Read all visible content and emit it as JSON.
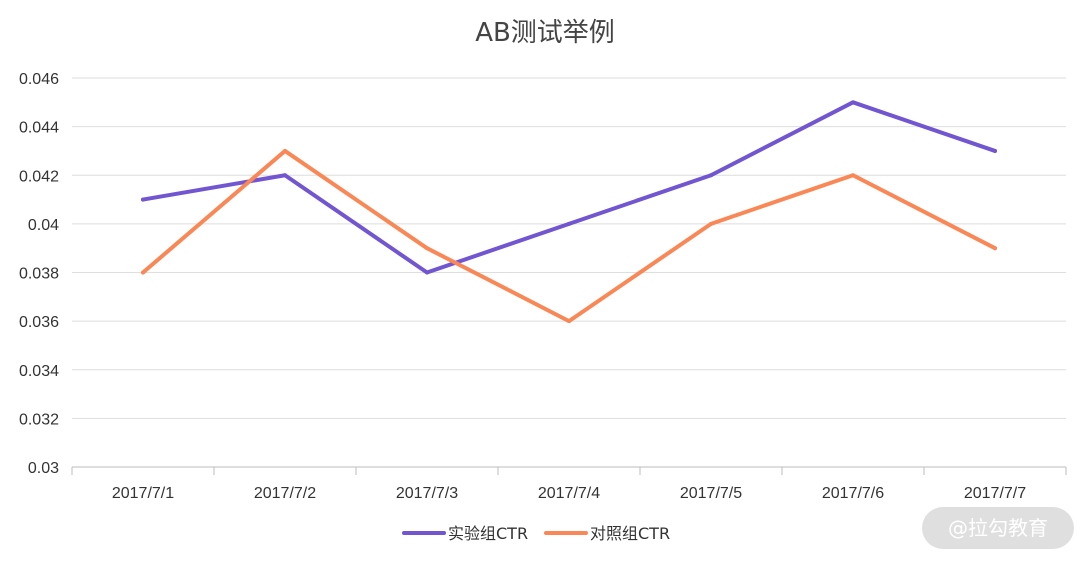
{
  "chart_data": {
    "type": "line",
    "title": "AB测试举例",
    "xlabel": "",
    "ylabel": "",
    "categories": [
      "2017/7/1",
      "2017/7/2",
      "2017/7/3",
      "2017/7/4",
      "2017/7/5",
      "2017/7/6",
      "2017/7/7"
    ],
    "series": [
      {
        "name": "实验组CTR",
        "color": "#7255D1",
        "values": [
          0.041,
          0.042,
          0.038,
          0.04,
          0.042,
          0.045,
          0.043
        ]
      },
      {
        "name": "对照组CTR",
        "color": "#FA8756",
        "values": [
          0.038,
          0.043,
          0.039,
          0.036,
          0.04,
          0.042,
          0.039
        ]
      }
    ],
    "ylim": [
      0.03,
      0.046
    ],
    "yticks": [
      "0.03",
      "0.032",
      "0.034",
      "0.036",
      "0.038",
      "0.04",
      "0.042",
      "0.044",
      "0.046"
    ],
    "grid": true,
    "legend": "bottom-center"
  },
  "watermark": {
    "text": "@拉勾教育"
  }
}
